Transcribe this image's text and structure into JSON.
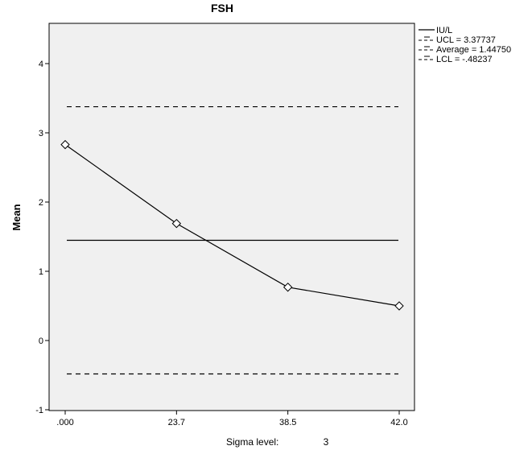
{
  "chart_data": {
    "type": "line",
    "title": "FSH",
    "ylabel": "Mean",
    "xlabel": "",
    "categories": [
      ".000",
      "23.7",
      "38.5",
      "42.0"
    ],
    "series": [
      {
        "name": "IU/L",
        "values": [
          2.83,
          1.69,
          0.77,
          0.5
        ],
        "marker": "diamond",
        "color": "#000000"
      }
    ],
    "control_lines": [
      {
        "label": "UCL = 3.37737",
        "value": 3.37737,
        "style": "dashed"
      },
      {
        "label": "Average = 1.44750",
        "value": 1.4475,
        "style": "solid"
      },
      {
        "label": "LCL = -.48237",
        "value": -0.48237,
        "style": "dashed"
      }
    ],
    "ylim": [
      -1,
      4.5
    ],
    "yticks": [
      -1,
      0,
      1,
      2,
      3,
      4
    ],
    "grid": false,
    "legend_position": "top-right",
    "plot_background": "#f0f0f0",
    "footer_label": "Sigma level:",
    "footer_value": "3"
  }
}
